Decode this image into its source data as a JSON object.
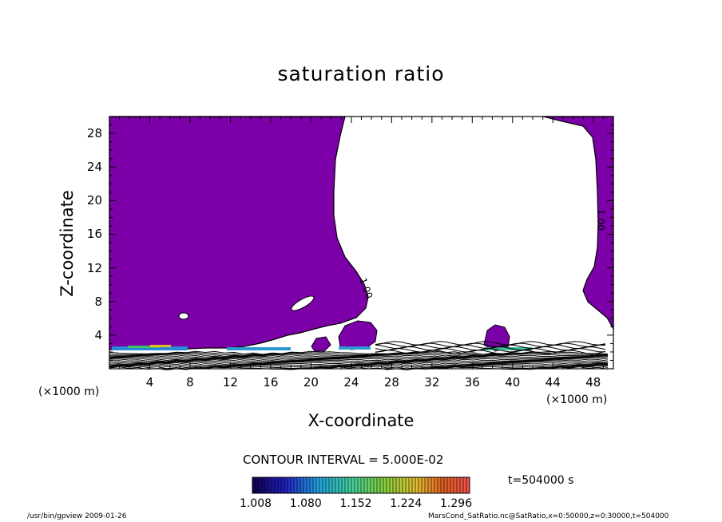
{
  "chart_data": {
    "type": "heatmap",
    "title": "saturation ratio",
    "xlabel": "X-coordinate",
    "ylabel": "Z-coordinate",
    "x_unit_left": "(×1000 m)",
    "x_unit_right": "(×1000 m)",
    "xlim": [
      0,
      50
    ],
    "ylim": [
      0,
      30
    ],
    "x_ticks": [
      4,
      8,
      12,
      16,
      20,
      24,
      28,
      32,
      36,
      40,
      44,
      48
    ],
    "y_ticks": [
      4,
      8,
      12,
      16,
      20,
      24,
      28
    ],
    "contour_interval": "CONTOUR INTERVAL = 5.000E-02",
    "contour_labels": [
      "1.00",
      "1.00"
    ],
    "colorbar": {
      "range": [
        1.008,
        1.32
      ],
      "tick_values": [
        1.008,
        1.08,
        1.152,
        1.224,
        1.296
      ],
      "tick_labels": [
        "1.008",
        "1.080",
        "1.152",
        "1.224",
        "1.296"
      ]
    },
    "time_label": "t=504000  s",
    "colors": {
      "fill": "#7b00a8",
      "outline": "#000000"
    }
  },
  "footer": {
    "left": "/usr/bin/gpview  2009-01-26",
    "right": "MarsCond_SatRatio.nc@SatRatio,x=0:50000,z=0:30000,t=504000"
  }
}
